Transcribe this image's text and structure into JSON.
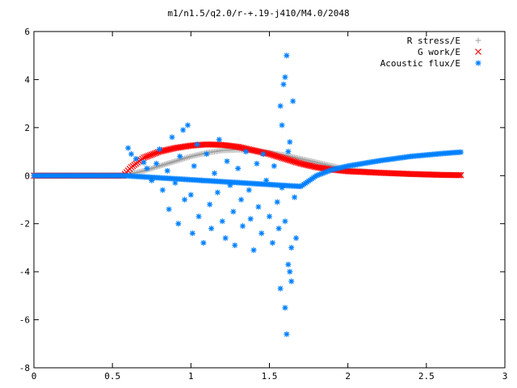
{
  "chart_data": {
    "type": "scatter",
    "title": "m1/n1.5/q2.0/r-+.19-j410/M4.0/2048",
    "xlabel": "",
    "ylabel": "",
    "xlim": [
      0,
      3
    ],
    "ylim": [
      -8,
      6
    ],
    "xticks": [
      "0",
      "0.5",
      "1",
      "1.5",
      "2",
      "2.5",
      "3"
    ],
    "yticks": [
      "-8",
      "-6",
      "-4",
      "-2",
      "0",
      "2",
      "4",
      "6"
    ],
    "grid": false,
    "legend_position": "top-right",
    "series": [
      {
        "name": "R stress/E",
        "marker": "plus",
        "color": "#a0a0a0",
        "points": [
          [
            0.0,
            0.0
          ],
          [
            0.55,
            0.0
          ],
          [
            0.6,
            0.05
          ],
          [
            0.7,
            0.2
          ],
          [
            0.8,
            0.4
          ],
          [
            0.9,
            0.6
          ],
          [
            1.0,
            0.8
          ],
          [
            1.1,
            0.95
          ],
          [
            1.2,
            1.05
          ],
          [
            1.3,
            1.08
          ],
          [
            1.4,
            1.05
          ],
          [
            1.5,
            0.95
          ],
          [
            1.6,
            0.85
          ],
          [
            1.7,
            0.7
          ],
          [
            1.8,
            0.55
          ],
          [
            1.9,
            0.4
          ],
          [
            2.0,
            0.25
          ],
          [
            2.2,
            0.12
          ],
          [
            2.4,
            0.06
          ],
          [
            2.6,
            0.03
          ],
          [
            2.72,
            0.02
          ]
        ]
      },
      {
        "name": "G work/E",
        "marker": "cross",
        "color": "#ff0000",
        "points": [
          [
            0.0,
            0.0
          ],
          [
            0.57,
            0.0
          ],
          [
            0.62,
            0.35
          ],
          [
            0.7,
            0.75
          ],
          [
            0.8,
            1.0
          ],
          [
            0.9,
            1.15
          ],
          [
            1.0,
            1.25
          ],
          [
            1.1,
            1.3
          ],
          [
            1.2,
            1.28
          ],
          [
            1.3,
            1.2
          ],
          [
            1.4,
            1.05
          ],
          [
            1.5,
            0.9
          ],
          [
            1.6,
            0.7
          ],
          [
            1.7,
            0.5
          ],
          [
            1.8,
            0.35
          ],
          [
            1.9,
            0.25
          ],
          [
            2.0,
            0.18
          ],
          [
            2.2,
            0.12
          ],
          [
            2.4,
            0.07
          ],
          [
            2.6,
            0.03
          ],
          [
            2.72,
            0.02
          ]
        ]
      },
      {
        "name": "Acoustic flux/E",
        "marker": "star",
        "color": "#0080ff",
        "curve": [
          [
            0.0,
            0.0
          ],
          [
            0.57,
            0.0
          ],
          [
            1.7,
            -0.45
          ],
          [
            1.8,
            0.0
          ],
          [
            1.9,
            0.25
          ],
          [
            2.0,
            0.4
          ],
          [
            2.2,
            0.62
          ],
          [
            2.4,
            0.8
          ],
          [
            2.6,
            0.92
          ],
          [
            2.72,
            0.98
          ]
        ],
        "cluster": [
          [
            0.6,
            1.15
          ],
          [
            0.62,
            0.9
          ],
          [
            0.65,
            0.7
          ],
          [
            0.7,
            0.55
          ],
          [
            0.72,
            0.3
          ],
          [
            0.75,
            -0.2
          ],
          [
            0.78,
            0.5
          ],
          [
            0.8,
            1.1
          ],
          [
            0.82,
            -0.6
          ],
          [
            0.85,
            0.2
          ],
          [
            0.86,
            -1.4
          ],
          [
            0.88,
            1.6
          ],
          [
            0.9,
            -0.3
          ],
          [
            0.92,
            -2.0
          ],
          [
            0.93,
            0.8
          ],
          [
            0.95,
            1.9
          ],
          [
            0.96,
            -1.0
          ],
          [
            0.98,
            2.1
          ],
          [
            1.0,
            -0.8
          ],
          [
            1.01,
            -2.4
          ],
          [
            1.02,
            0.4
          ],
          [
            1.04,
            1.3
          ],
          [
            1.05,
            -1.7
          ],
          [
            1.07,
            -0.2
          ],
          [
            1.08,
            -2.8
          ],
          [
            1.1,
            0.9
          ],
          [
            1.12,
            -1.2
          ],
          [
            1.13,
            -2.2
          ],
          [
            1.15,
            0.1
          ],
          [
            1.17,
            -0.7
          ],
          [
            1.18,
            1.5
          ],
          [
            1.2,
            -1.9
          ],
          [
            1.22,
            -2.6
          ],
          [
            1.23,
            0.6
          ],
          [
            1.25,
            -0.4
          ],
          [
            1.27,
            -1.5
          ],
          [
            1.28,
            -2.9
          ],
          [
            1.3,
            0.3
          ],
          [
            1.32,
            -1.0
          ],
          [
            1.33,
            -2.1
          ],
          [
            1.35,
            1.0
          ],
          [
            1.37,
            -0.6
          ],
          [
            1.38,
            -1.8
          ],
          [
            1.4,
            -3.1
          ],
          [
            1.42,
            0.5
          ],
          [
            1.43,
            -1.3
          ],
          [
            1.45,
            -2.4
          ],
          [
            1.46,
            0.9
          ],
          [
            1.48,
            -0.2
          ],
          [
            1.5,
            -1.7
          ],
          [
            1.52,
            -2.8
          ],
          [
            1.53,
            0.4
          ],
          [
            1.55,
            -1.1
          ],
          [
            1.56,
            -2.2
          ],
          [
            1.57,
            2.9
          ],
          [
            1.58,
            -0.5
          ],
          [
            1.59,
            3.8
          ],
          [
            1.6,
            -1.9
          ],
          [
            1.61,
            5.0
          ],
          [
            1.62,
            -3.7
          ],
          [
            1.63,
            1.4
          ],
          [
            1.64,
            -4.4
          ],
          [
            1.65,
            3.1
          ],
          [
            1.66,
            -0.9
          ],
          [
            1.67,
            -2.6
          ],
          [
            1.6,
            -5.5
          ],
          [
            1.61,
            -6.6
          ],
          [
            1.6,
            4.1
          ],
          [
            1.58,
            2.1
          ],
          [
            1.62,
            1.0
          ],
          [
            1.64,
            -3.0
          ],
          [
            1.57,
            -4.7
          ],
          [
            1.63,
            -4.0
          ]
        ]
      }
    ]
  }
}
